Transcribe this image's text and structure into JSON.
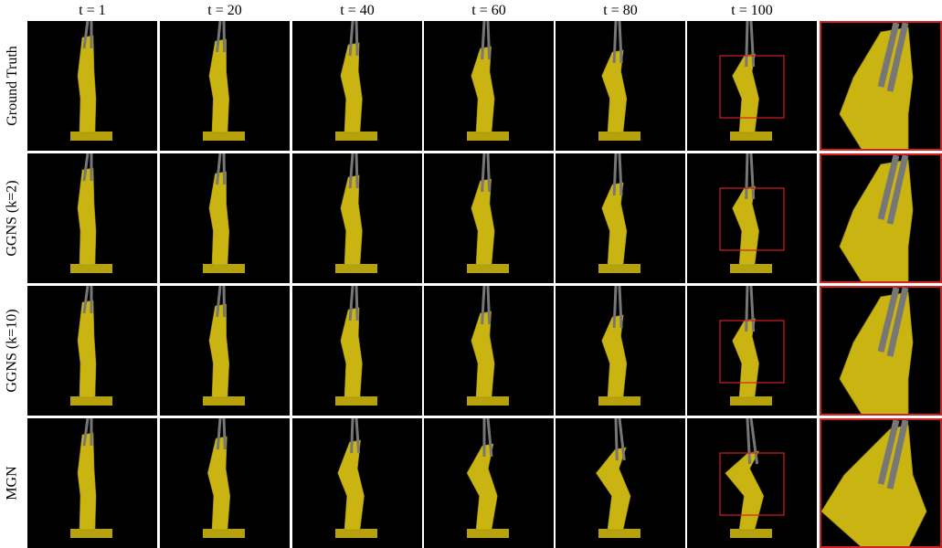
{
  "column_headers": [
    "t = 1",
    "t = 20",
    "t = 40",
    "t = 60",
    "t = 80",
    "t = 100"
  ],
  "row_labels": [
    "Ground Truth",
    "GGNS (k=2)",
    "GGNS (k=10)",
    "MGN"
  ]
}
